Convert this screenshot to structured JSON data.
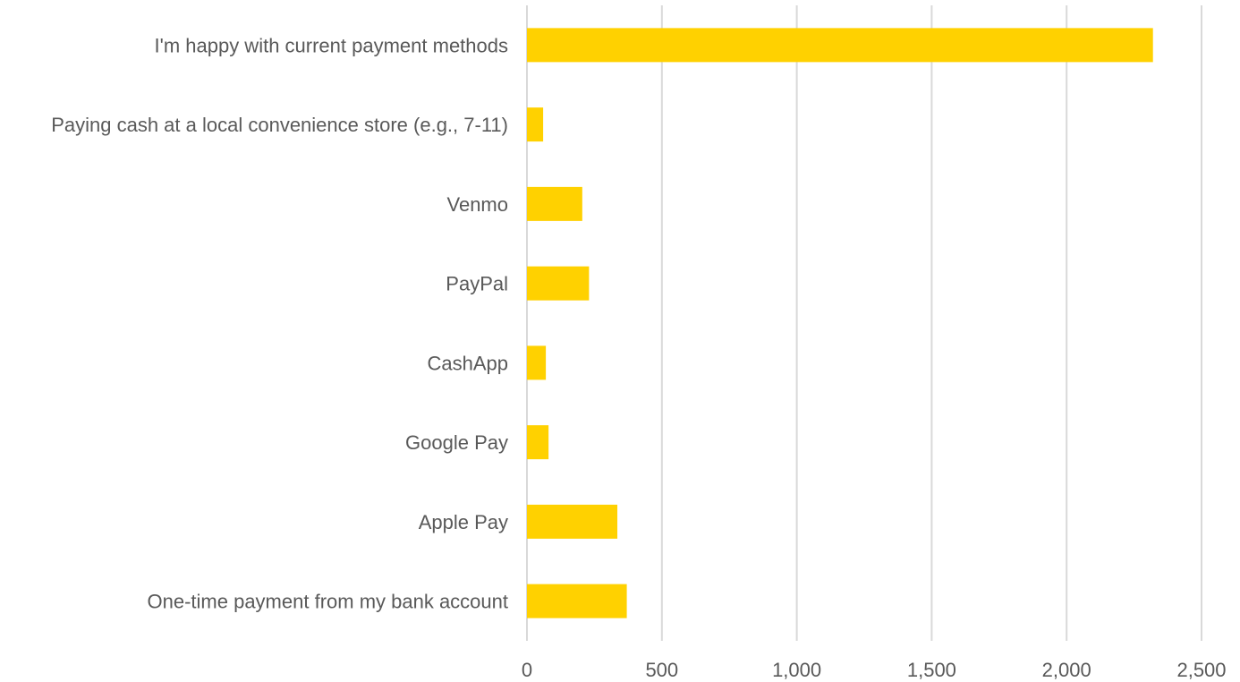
{
  "chart_data": {
    "type": "bar",
    "orientation": "horizontal",
    "categories": [
      "I'm happy with current payment methods",
      "Paying cash at a local convenience store (e.g., 7-11)",
      "Venmo",
      "PayPal",
      "CashApp",
      "Google Pay",
      "Apple Pay",
      "One-time payment from my bank account"
    ],
    "values": [
      2320,
      60,
      205,
      230,
      70,
      80,
      335,
      370
    ],
    "xlim": [
      0,
      2500
    ],
    "xticks": [
      0,
      500,
      1000,
      1500,
      2000,
      2500
    ],
    "xtick_labels": [
      "0",
      "500",
      "1,000",
      "1,500",
      "2,000",
      "2,500"
    ],
    "bar_color": "#ffd100",
    "grid": true,
    "legend": "none",
    "title": "",
    "xlabel": "",
    "ylabel": ""
  }
}
